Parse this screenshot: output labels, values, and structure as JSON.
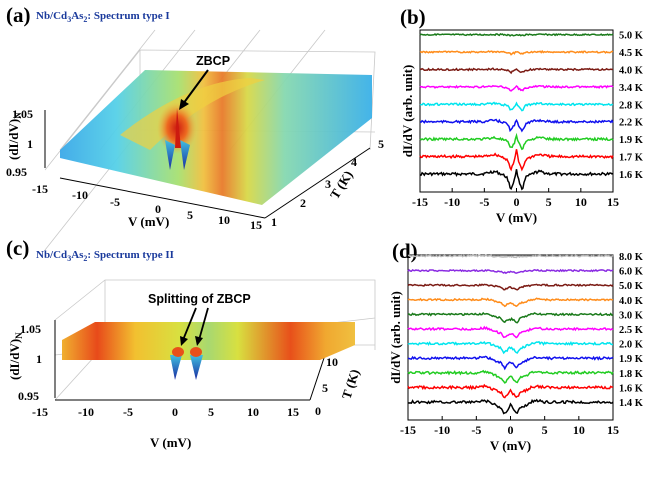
{
  "figure": {
    "panel_a": {
      "label": "(a)",
      "title_pre": "Nb/Cd",
      "title_sub1": "3",
      "title_mid": "As",
      "title_sub2": "2",
      "title_post": ": Spectrum type I",
      "annotation": "ZBCP",
      "xlabel": "V (mV)",
      "ylabel": "T (K)",
      "zlabel": "(dI/dV)",
      "zlabel_sub": "N",
      "xticks": [
        "-15",
        "-10",
        "-5",
        "0",
        "5",
        "10",
        "15"
      ],
      "yticks": [
        "1",
        "2",
        "3",
        "4",
        "5"
      ],
      "zticks": [
        "0.95",
        "1",
        "1.05"
      ]
    },
    "panel_c": {
      "label": "(c)",
      "title_pre": "Nb/Cd",
      "title_sub1": "3",
      "title_mid": "As",
      "title_sub2": "2",
      "title_post": ": Spectrum type II",
      "annotation": "Splitting of ZBCP",
      "xlabel": "V (mV)",
      "ylabel": "T (K)",
      "zlabel": "(dI/dV)",
      "zlabel_sub": "N",
      "xticks": [
        "-15",
        "-10",
        "-5",
        "0",
        "5",
        "10",
        "15"
      ],
      "yticks": [
        "0",
        "5",
        "10"
      ],
      "zticks": [
        "0.95",
        "1",
        "1.05"
      ]
    },
    "panel_b": {
      "label": "(b)"
    },
    "panel_d": {
      "label": "(d)"
    }
  },
  "chart_data": [
    {
      "id": "b",
      "type": "line",
      "title": "",
      "xlabel": "V (mV)",
      "ylabel": "dI/dV (arb. unit)",
      "xlim": [
        -15,
        15
      ],
      "xticks": [
        -15,
        -10,
        -5,
        0,
        5,
        10,
        15
      ],
      "series": [
        {
          "name": "1.6 K",
          "color": "#000000",
          "dip": 0.95,
          "peak": 0.65,
          "offset": 0
        },
        {
          "name": "1.7 K",
          "color": "#ff0000",
          "dip": 0.8,
          "peak": 0.75,
          "offset": 1
        },
        {
          "name": "1.9 K",
          "color": "#22cc22",
          "dip": 0.6,
          "peak": 0.45,
          "offset": 2
        },
        {
          "name": "2.2 K",
          "color": "#1010ee",
          "dip": 0.55,
          "peak": 0.3,
          "offset": 3
        },
        {
          "name": "2.8 K",
          "color": "#00e5ee",
          "dip": 0.35,
          "peak": 0.2,
          "offset": 4
        },
        {
          "name": "3.4 K",
          "color": "#ff00ff",
          "dip": 0.25,
          "peak": 0.15,
          "offset": 5
        },
        {
          "name": "4.0 K",
          "color": "#7b1b14",
          "dip": 0.2,
          "peak": 0.1,
          "offset": 6
        },
        {
          "name": "4.5 K",
          "color": "#ff8c1a",
          "dip": 0.12,
          "peak": 0.05,
          "offset": 7
        },
        {
          "name": "5.0 K",
          "color": "#1a7a1a",
          "dip": 0.06,
          "peak": 0.02,
          "offset": 8
        }
      ]
    },
    {
      "id": "d",
      "type": "line",
      "title": "",
      "xlabel": "V (mV)",
      "ylabel": "dI/dV (arb. unit)",
      "xlim": [
        -15,
        15
      ],
      "xticks": [
        -15,
        -10,
        -5,
        0,
        5,
        10,
        15
      ],
      "series": [
        {
          "name": "1.4 K",
          "color": "#000000",
          "dip": 1.0,
          "peak": 0.7,
          "offset": 0
        },
        {
          "name": "1.6 K",
          "color": "#ff0000",
          "dip": 0.9,
          "peak": 0.55,
          "offset": 1
        },
        {
          "name": "1.8 K",
          "color": "#22cc22",
          "dip": 0.85,
          "peak": 0.4,
          "offset": 2
        },
        {
          "name": "1.9 K",
          "color": "#1010ee",
          "dip": 0.85,
          "peak": 0.3,
          "offset": 3
        },
        {
          "name": "2.0 K",
          "color": "#00e5ee",
          "dip": 0.8,
          "peak": 0.2,
          "offset": 4
        },
        {
          "name": "2.5 K",
          "color": "#ff00ff",
          "dip": 0.75,
          "peak": 0.1,
          "offset": 5
        },
        {
          "name": "3.0 K",
          "color": "#1a7a1a",
          "dip": 0.7,
          "peak": 0.0,
          "offset": 6
        },
        {
          "name": "4.0 K",
          "color": "#ff8c1a",
          "dip": 0.55,
          "peak": 0.0,
          "offset": 7
        },
        {
          "name": "5.0 K",
          "color": "#7b1b14",
          "dip": 0.35,
          "peak": 0.0,
          "offset": 8
        },
        {
          "name": "6.0 K",
          "color": "#8a2be2",
          "dip": 0.2,
          "peak": 0.0,
          "offset": 9
        },
        {
          "name": "8.0 K",
          "color": "#b8b8b8",
          "dip": 0.1,
          "peak": 0.0,
          "offset": 10
        }
      ]
    }
  ]
}
